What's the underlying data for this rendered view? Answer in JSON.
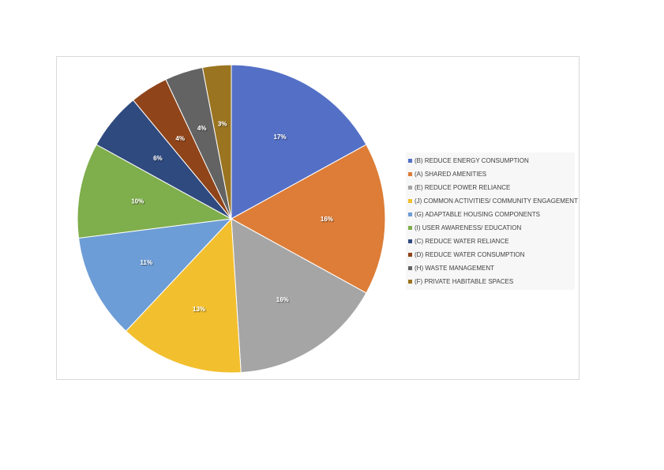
{
  "chart_data": {
    "type": "pie",
    "categories": [
      "(B) REDUCE ENERGY CONSUMPTION",
      "(A) SHARED AMENITIES",
      "(E) REDUCE POWER RELIANCE",
      "(J) COMMON ACTIVITIES/ COMMUNITY ENGAGEMENT",
      "(G) ADAPTABLE HOUSING COMPONENTS",
      "(I) USER AWARENESS/ EDUCATION",
      "(C) REDUCE WATER RELIANCE",
      "(D) REDUCE WATER CONSUMPTION",
      "(H) WASTE MANAGEMENT",
      "(F) PRIVATE HABITABLE SPACES"
    ],
    "values": [
      17,
      16,
      16,
      13,
      11,
      10,
      6,
      4,
      4,
      3
    ],
    "data_labels": [
      "17%",
      "16%",
      "16%",
      "13%",
      "11%",
      "10%",
      "6%",
      "4%",
      "4%",
      "3%"
    ],
    "colors": [
      "#5470c6",
      "#dd7d37",
      "#a5a5a5",
      "#f2bf2e",
      "#6d9dd6",
      "#7fae4c",
      "#2f4a7f",
      "#8f4419",
      "#636363",
      "#9a7420"
    ],
    "title": "",
    "legend_position": "right",
    "start_angle": "12 o'clock, clockwise"
  }
}
